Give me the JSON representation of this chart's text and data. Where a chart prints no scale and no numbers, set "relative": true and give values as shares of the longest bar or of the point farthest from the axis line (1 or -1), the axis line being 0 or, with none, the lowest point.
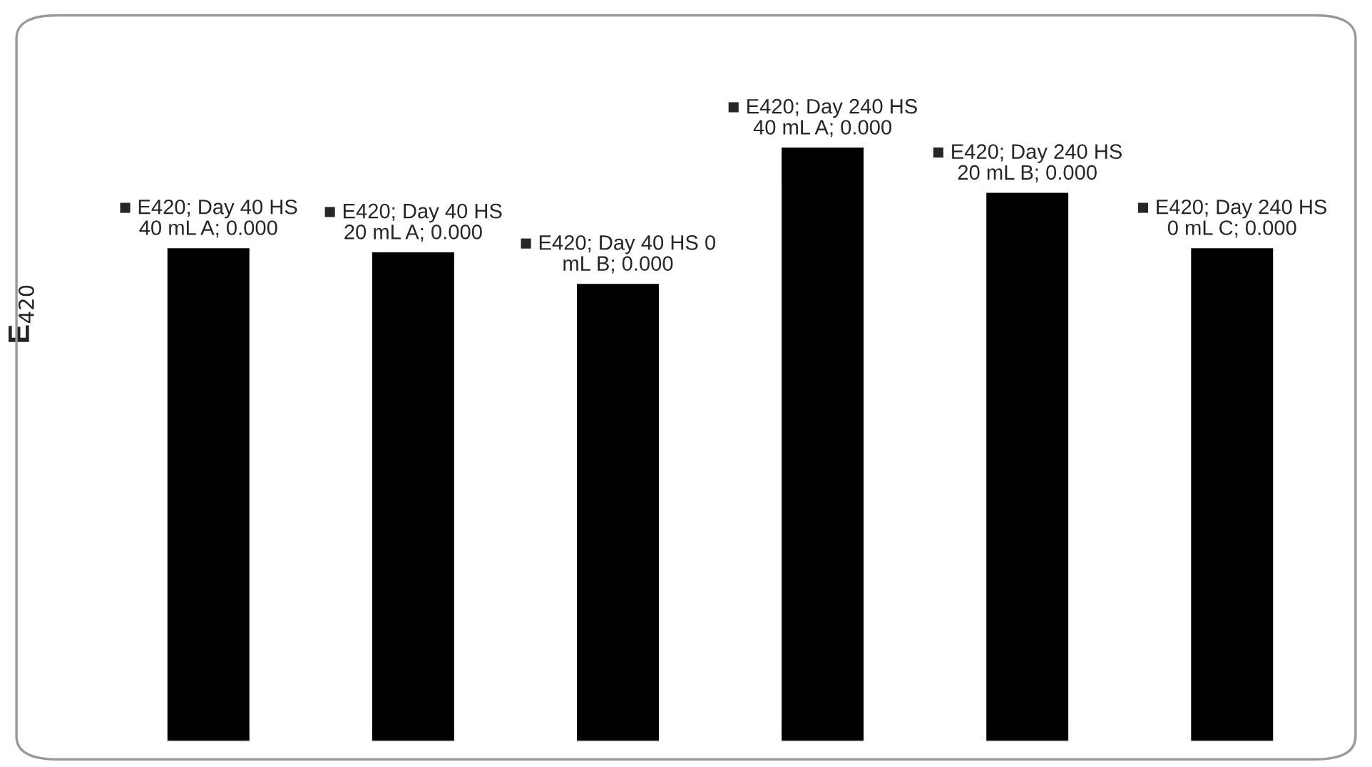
{
  "chart_data": {
    "type": "bar",
    "relative": true,
    "ylabel": "E$_{420}$",
    "categories": [
      null,
      null,
      null,
      null,
      null,
      null
    ],
    "values": [
      0.831,
      0.824,
      0.771,
      1,
      0.924,
      0.831
    ],
    "color": "#000000",
    "annotations": [
      "■ E420; Day 40 HS\n40 mL A; 0.000",
      "■ E420; Day 40 HS\n20 mL A; 0.000",
      "■ E420; Day 40 HS 0\nmL B; 0.000",
      "■ E420; Day 240 HS\n40 mL A; 0.000",
      "■ E420; Day 240 HS\n20 mL B; 0.000",
      "■ E420; Day 240 HS\n0 mL C; 0.000"
    ],
    "grid": false,
    "legend": false
  }
}
